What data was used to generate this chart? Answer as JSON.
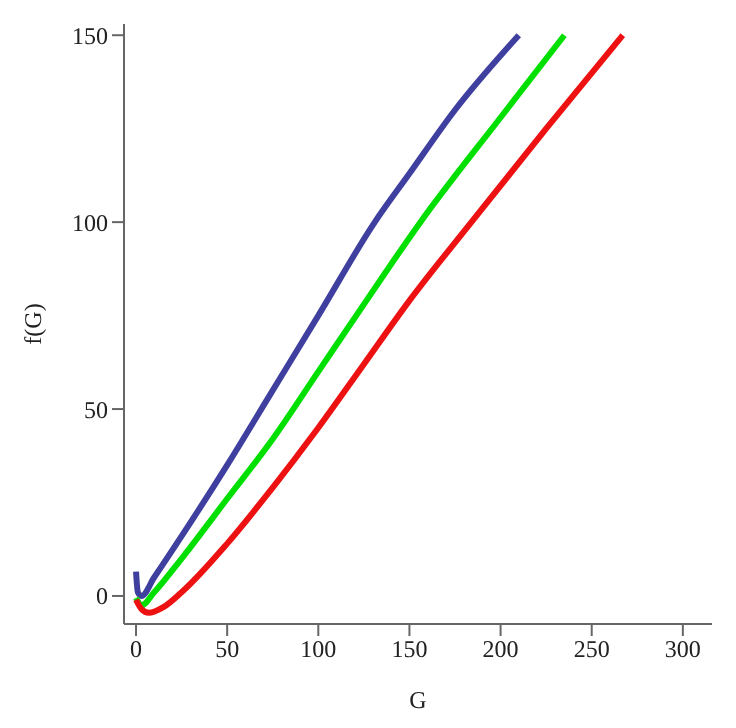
{
  "chart_data": {
    "type": "line",
    "xlabel": "G",
    "ylabel": "f(G)",
    "xlim": [
      -6.6,
      316
    ],
    "ylim": [
      -7.5,
      153
    ],
    "xticks": [
      0,
      50,
      100,
      150,
      200,
      250,
      300
    ],
    "yticks": [
      0,
      50,
      100,
      150
    ],
    "grid": false,
    "legend": false,
    "marker": "none",
    "line_style": "solid",
    "series": [
      {
        "color": "#3f3f9f",
        "x": [
          0,
          1,
          3,
          10,
          25,
          50,
          75,
          100,
          131,
          150,
          175,
          210
        ],
        "values": [
          6.5,
          1,
          0,
          5,
          16,
          35,
          55,
          75,
          100,
          113,
          130,
          150
        ]
      },
      {
        "color": "#00e000",
        "x": [
          0,
          3,
          10,
          25,
          50,
          75,
          100,
          125,
          156,
          200,
          235
        ],
        "values": [
          -0.5,
          -2.5,
          1,
          10,
          26,
          42,
          60,
          78,
          100,
          128,
          150
        ]
      },
      {
        "color": "#ee1111",
        "x": [
          0,
          3,
          7,
          15,
          25,
          50,
          75,
          100,
          125,
          150,
          184,
          225,
          267
        ],
        "values": [
          -1,
          -3.5,
          -4.5,
          -3,
          1,
          14,
          29,
          45,
          62,
          79,
          100,
          125,
          150
        ]
      }
    ]
  }
}
